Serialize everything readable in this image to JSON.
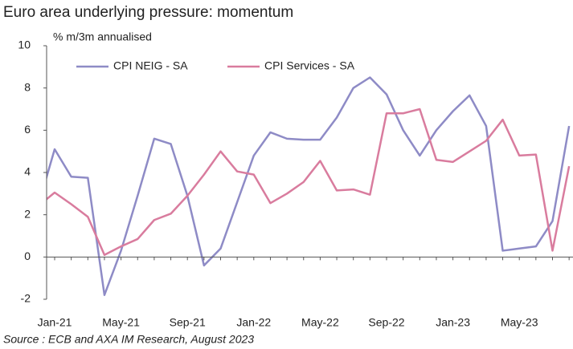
{
  "chart_data": {
    "type": "line",
    "title": "Euro area underlying pressure: momentum",
    "y_axis_label": "% m/3m annualised",
    "source": "Source : ECB and AXA IM Research, August 2023",
    "categories": [
      null,
      "Jan-21",
      null,
      null,
      null,
      "May-21",
      null,
      null,
      null,
      "Sep-21",
      null,
      null,
      null,
      "Jan-22",
      null,
      null,
      null,
      "May-22",
      null,
      null,
      null,
      "Sep-22",
      null,
      null,
      null,
      "Jan-23",
      null,
      null,
      null,
      "May-23",
      null,
      null,
      null
    ],
    "series": [
      {
        "name": "CPI NEIG - SA",
        "color": "#8e8bc6",
        "values": [
          2.4,
          5.1,
          3.8,
          3.75,
          -1.8,
          0.3,
          2.9,
          5.6,
          5.35,
          2.9,
          -0.4,
          0.4,
          2.6,
          4.8,
          5.9,
          5.6,
          5.55,
          5.55,
          6.6,
          8.0,
          8.5,
          7.7,
          6.0,
          4.8,
          6.0,
          6.9,
          7.65,
          6.2,
          0.3,
          0.4,
          0.5,
          1.7,
          6.2
        ]
      },
      {
        "name": "CPI Services - SA",
        "color": "#d97c9e",
        "values": [
          2.4,
          3.05,
          2.5,
          1.9,
          0.1,
          0.5,
          0.85,
          1.75,
          2.05,
          2.9,
          3.9,
          5.0,
          4.05,
          3.9,
          2.55,
          3.0,
          3.55,
          4.55,
          3.15,
          3.2,
          2.95,
          6.8,
          6.8,
          7.0,
          4.6,
          4.5,
          5.0,
          5.5,
          6.5,
          4.8,
          4.85,
          0.3,
          4.3
        ]
      }
    ],
    "ylim": [
      -2,
      10
    ],
    "yticks": [
      -2,
      0,
      2,
      4,
      6,
      8,
      10
    ],
    "legend": "top"
  }
}
